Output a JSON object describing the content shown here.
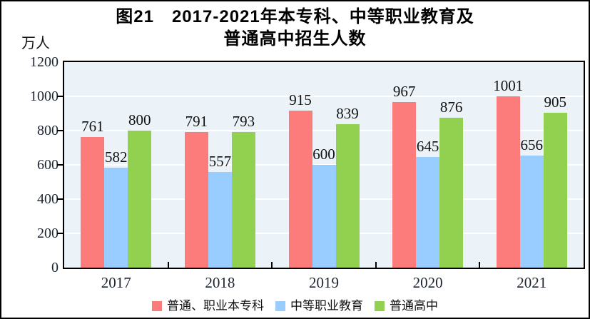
{
  "title": {
    "line1": "图21　2017-2021年本专科、中等职业教育及",
    "line2": "普通高中招生人数"
  },
  "y_axis": {
    "unit_label": "万人"
  },
  "chart_data": {
    "type": "bar",
    "title": "图21 2017-2021年本专科、中等职业教育及普通高中招生人数",
    "categories": [
      "2017",
      "2018",
      "2019",
      "2020",
      "2021"
    ],
    "series": [
      {
        "name": "普通、职业本专科",
        "color": "#FC7C7C",
        "values": [
          761,
          791,
          915,
          967,
          1001
        ]
      },
      {
        "name": "中等职业教育",
        "color": "#99CCFF",
        "values": [
          582,
          557,
          600,
          645,
          656
        ]
      },
      {
        "name": "普通高中",
        "color": "#92D050",
        "values": [
          800,
          793,
          839,
          876,
          905
        ]
      }
    ],
    "xlabel": "",
    "ylabel": "万人",
    "ylim": [
      0,
      1200
    ],
    "ytick_step": 200,
    "grid": true,
    "gridline_color": "#ffffff",
    "plot_background": "#ECF3F8",
    "axis_color": "#000000",
    "data_labels": true,
    "legend_position": "bottom"
  }
}
